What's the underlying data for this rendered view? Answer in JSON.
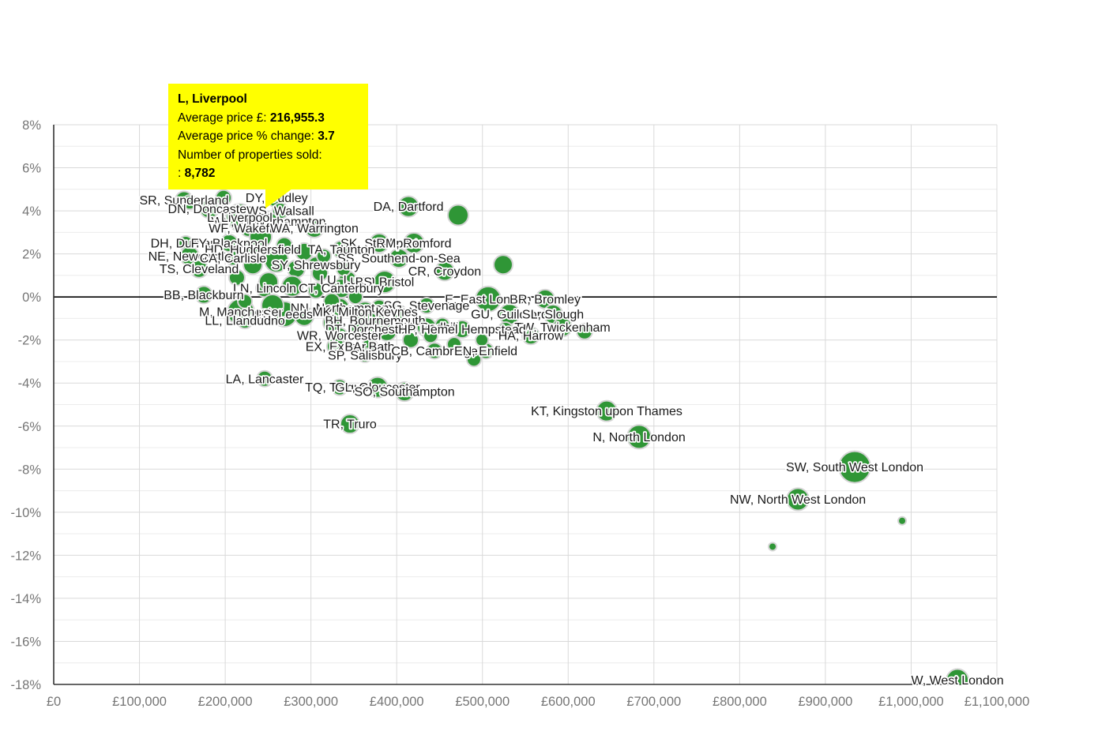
{
  "tooltip": {
    "title": "L, Liverpool",
    "avg_price_label": "Average price £:",
    "avg_price_value": "216,955.3",
    "pct_change_label": "Average price % change:",
    "pct_change_value": "3.7",
    "sold_label": "Number of properties sold:",
    "sold_prefix": ":",
    "sold_value": "8,782",
    "bg_color": "#ffff00"
  },
  "chart_data": {
    "type": "scatter",
    "title": "",
    "xlabel": "Average price (£)",
    "ylabel": "Average price % change",
    "bubble_color": "#2f9636",
    "bubble_stroke": "#d4d4d4",
    "grid_major_color": "#d9d9d9",
    "grid_minor_color": "#ececec",
    "axis_color": "#333333",
    "zero_line_color": "#000000",
    "tick_label_color": "#757575",
    "x_axis": {
      "min": 0,
      "max": 1100000,
      "ticks": [
        {
          "value": 0,
          "label": "£0"
        },
        {
          "value": 100000,
          "label": "£100,000"
        },
        {
          "value": 200000,
          "label": "£200,000"
        },
        {
          "value": 300000,
          "label": "£300,000"
        },
        {
          "value": 400000,
          "label": "£400,000"
        },
        {
          "value": 500000,
          "label": "£500,000"
        },
        {
          "value": 600000,
          "label": "£600,000"
        },
        {
          "value": 700000,
          "label": "£700,000"
        },
        {
          "value": 800000,
          "label": "£800,000"
        },
        {
          "value": 900000,
          "label": "£900,000"
        },
        {
          "value": 1000000,
          "label": "£1,000,000"
        },
        {
          "value": 1100000,
          "label": "£1,100,000"
        }
      ]
    },
    "y_axis": {
      "min": -18,
      "max": 8,
      "ticks": [
        {
          "value": 8,
          "label": "8%"
        },
        {
          "value": 6,
          "label": "6%"
        },
        {
          "value": 4,
          "label": "4%"
        },
        {
          "value": 2,
          "label": "2%"
        },
        {
          "value": 0,
          "label": "0%"
        },
        {
          "value": -2,
          "label": "-2%"
        },
        {
          "value": -4,
          "label": "-4%"
        },
        {
          "value": -6,
          "label": "-6%"
        },
        {
          "value": -8,
          "label": "-8%"
        },
        {
          "value": -10,
          "label": "-10%"
        },
        {
          "value": -12,
          "label": "-12%"
        },
        {
          "value": -14,
          "label": "-14%"
        },
        {
          "value": -16,
          "label": "-16%"
        },
        {
          "value": -18,
          "label": "-18%"
        }
      ]
    },
    "point_columns": [
      "label",
      "avg_price_gbp",
      "pct_change",
      "radius_px"
    ],
    "points": [
      [
        "SR, Sunderland",
        152000,
        4.5,
        11
      ],
      [
        "DY, Dudley",
        260000,
        4.6,
        12
      ],
      [
        "DN, Doncaster",
        181500,
        4.1,
        12
      ],
      [
        "WS, Walsall",
        264400,
        4.0,
        10
      ],
      [
        "WV, Wolverhampton",
        250600,
        3.5,
        12
      ],
      [
        "WF, Wakefield",
        227600,
        3.2,
        11
      ],
      [
        "WA, Warrington",
        304000,
        3.2,
        12
      ],
      [
        "L, Liverpool",
        216955,
        3.7,
        17
      ],
      [
        "DA, Dartford",
        413700,
        4.2,
        13
      ],
      [
        "DH, Durham",
        153900,
        2.5,
        9
      ],
      [
        "FY, Blackpool",
        204500,
        2.5,
        11
      ],
      [
        "SK, Stockport",
        379600,
        2.5,
        12
      ],
      [
        "RM, Romford",
        420100,
        2.5,
        13
      ],
      [
        "HD, Huddersfield",
        232200,
        2.2,
        11
      ],
      [
        "TA, Taunton",
        335400,
        2.2,
        11
      ],
      [
        "NE, Newcastle",
        158500,
        1.9,
        12
      ],
      [
        "CA, Carlisle",
        209100,
        1.8,
        9
      ],
      [
        "SS, Southend-on-Sea",
        402600,
        1.8,
        12
      ],
      [
        "SY, Shrewsbury",
        305900,
        1.5,
        10
      ],
      [
        "TS, Cleveland",
        169500,
        1.3,
        11
      ],
      [
        "CR, Croydon",
        456000,
        1.2,
        12
      ],
      [
        "LU, Luton",
        342700,
        0.8,
        11
      ],
      [
        "BS, Bristol",
        386000,
        0.7,
        14
      ],
      [
        "LN, Lincoln",
        246000,
        0.4,
        11
      ],
      [
        "CT, Canterbury",
        335400,
        0.4,
        12
      ],
      [
        "BB, Blackburn",
        175000,
        0.1,
        11
      ],
      [
        "E, East London",
        506700,
        -0.1,
        16
      ],
      [
        "BR, Bromley",
        573100,
        -0.1,
        12
      ],
      [
        "SG, Stevenage",
        434900,
        -0.4,
        10
      ],
      [
        "NN, Northampton",
        333500,
        -0.5,
        12
      ],
      [
        "M, Manchester",
        218300,
        -0.7,
        17
      ],
      [
        "LS, Leeds",
        269000,
        -0.8,
        16
      ],
      [
        "MK, Milton Keynes",
        363000,
        -0.7,
        13
      ],
      [
        "GU, Guildford",
        531600,
        -0.8,
        13
      ],
      [
        "SL, Slough",
        582300,
        -0.8,
        12
      ],
      [
        "LL, Llandudno",
        223000,
        -1.1,
        10
      ],
      [
        "BH, Bournemouth",
        375000,
        -1.1,
        13
      ],
      [
        "RH, Redhill",
        434900,
        -1.4,
        12
      ],
      [
        "TW, Twickenham",
        593300,
        -1.4,
        12
      ],
      [
        "DT, Dorchester",
        365800,
        -1.5,
        10
      ],
      [
        "HP, Hemel Hempstead",
        476300,
        -1.5,
        11
      ],
      [
        "WR, Worcester",
        333500,
        -1.8,
        10
      ],
      [
        "HA, Harrow",
        556500,
        -1.8,
        11
      ],
      [
        "EX, Exeter",
        328900,
        -2.3,
        11
      ],
      [
        "BA, Bath",
        368500,
        -2.3,
        10
      ],
      [
        "SP, Salisbury",
        363000,
        -2.7,
        9
      ],
      [
        "CB, Cambridge",
        444100,
        -2.5,
        10
      ],
      [
        "EN, Enfield",
        504000,
        -2.5,
        10
      ],
      [
        "LA, Lancaster",
        246000,
        -3.8,
        10
      ],
      [
        "TQ, Torquay",
        333500,
        -4.2,
        10
      ],
      [
        "GL, Gloucester",
        377700,
        -4.2,
        13
      ],
      [
        "SO, Southampton",
        409100,
        -4.4,
        12
      ],
      [
        "TR, Truro",
        345500,
        -5.9,
        12
      ],
      [
        "KT, Kingston upon Thames",
        644900,
        -5.3,
        13
      ],
      [
        "N, North London",
        682700,
        -6.5,
        15
      ],
      [
        "SW, South West London",
        934200,
        -7.9,
        20
      ],
      [
        "NW, North West London",
        867900,
        -9.4,
        14
      ],
      [
        "W, West London",
        1054000,
        -17.8,
        14
      ],
      [
        "",
        471700,
        3.8,
        13
      ],
      [
        "",
        524200,
        1.5,
        12
      ],
      [
        "",
        989500,
        -10.4,
        5
      ],
      [
        "",
        838400,
        -11.6,
        5
      ],
      [
        "",
        158500,
        4.4,
        9
      ],
      [
        "",
        198100,
        4.6,
        10
      ],
      [
        "",
        241400,
        2.8,
        14
      ],
      [
        "",
        269000,
        2.4,
        10
      ],
      [
        "",
        292100,
        2.1,
        11
      ],
      [
        "",
        315100,
        1.9,
        9
      ],
      [
        "",
        259800,
        1.7,
        15
      ],
      [
        "",
        232200,
        1.5,
        12
      ],
      [
        "",
        282800,
        1.3,
        11
      ],
      [
        "",
        310500,
        1.1,
        10
      ],
      [
        "",
        338100,
        1.3,
        9
      ],
      [
        "",
        213700,
        0.9,
        10
      ],
      [
        "",
        250600,
        0.7,
        12
      ],
      [
        "",
        278200,
        0.5,
        13
      ],
      [
        "",
        305900,
        0.3,
        10
      ],
      [
        "",
        223000,
        -0.2,
        9
      ],
      [
        "",
        255200,
        -0.4,
        14
      ],
      [
        "",
        324300,
        -0.2,
        10
      ],
      [
        "",
        351900,
        0.0,
        9
      ],
      [
        "",
        379600,
        -0.5,
        10
      ],
      [
        "",
        402600,
        -0.7,
        9
      ],
      [
        "",
        292100,
        -0.9,
        12
      ],
      [
        "",
        324300,
        -1.2,
        11
      ],
      [
        "",
        356500,
        -1.5,
        10
      ],
      [
        "",
        388800,
        -1.6,
        12
      ],
      [
        "",
        416400,
        -2.0,
        10
      ],
      [
        "",
        439500,
        -1.8,
        9
      ],
      [
        "",
        467100,
        -2.2,
        9
      ],
      [
        "",
        499400,
        -2.0,
        8
      ],
      [
        "",
        453300,
        -1.3,
        9
      ],
      [
        "",
        527000,
        -1.5,
        9
      ],
      [
        "",
        619100,
        -1.6,
        10
      ],
      [
        "",
        490100,
        -2.9,
        9
      ]
    ]
  }
}
